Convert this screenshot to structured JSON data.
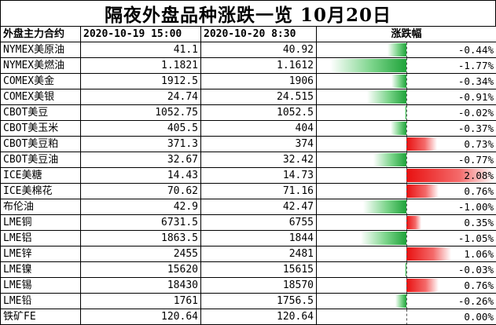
{
  "title": "隔夜外盘品种涨跌一览 10月20日",
  "headers": {
    "name": "外盘主力合约",
    "prev": "2020-10-19 15:00",
    "curr": "2020-10-20 8:30",
    "change": "涨跌幅"
  },
  "colors": {
    "positive": "#e81010",
    "negative": "#1fa33a"
  },
  "rows": [
    {
      "name": "NYMEX美原油",
      "prev": "41.1",
      "curr": "40.92",
      "change": "-0.44%",
      "pct": -0.44
    },
    {
      "name": "NYMEX美燃油",
      "prev": "1.1821",
      "curr": "1.1612",
      "change": "-1.77%",
      "pct": -1.77
    },
    {
      "name": "COMEX美金",
      "prev": "1912.5",
      "curr": "1906",
      "change": "-0.34%",
      "pct": -0.34
    },
    {
      "name": "COMEX美银",
      "prev": "24.74",
      "curr": "24.515",
      "change": "-0.91%",
      "pct": -0.91
    },
    {
      "name": "CBOT美豆",
      "prev": "1052.75",
      "curr": "1052.5",
      "change": "-0.02%",
      "pct": -0.02
    },
    {
      "name": "CBOT美玉米",
      "prev": "405.5",
      "curr": "404",
      "change": "-0.37%",
      "pct": -0.37
    },
    {
      "name": "CBOT美豆粕",
      "prev": "371.3",
      "curr": "374",
      "change": "0.73%",
      "pct": 0.73
    },
    {
      "name": "CBOT美豆油",
      "prev": "32.67",
      "curr": "32.42",
      "change": "-0.77%",
      "pct": -0.77
    },
    {
      "name": "ICE美糖",
      "prev": "14.43",
      "curr": "14.73",
      "change": "2.08%",
      "pct": 2.08
    },
    {
      "name": "ICE美棉花",
      "prev": "70.62",
      "curr": "71.16",
      "change": "0.76%",
      "pct": 0.76
    },
    {
      "name": "布伦油",
      "prev": "42.9",
      "curr": "42.47",
      "change": "-1.00%",
      "pct": -1.0
    },
    {
      "name": "LME铜",
      "prev": "6731.5",
      "curr": "6755",
      "change": "0.35%",
      "pct": 0.35
    },
    {
      "name": "LME铝",
      "prev": "1863.5",
      "curr": "1844",
      "change": "-1.05%",
      "pct": -1.05
    },
    {
      "name": "LME锌",
      "prev": "2455",
      "curr": "2481",
      "change": "1.06%",
      "pct": 1.06
    },
    {
      "name": "LME镍",
      "prev": "15620",
      "curr": "15615",
      "change": "-0.03%",
      "pct": -0.03
    },
    {
      "name": "LME锡",
      "prev": "18430",
      "curr": "18570",
      "change": "0.76%",
      "pct": 0.76
    },
    {
      "name": "LME铅",
      "prev": "1761",
      "curr": "1756.5",
      "change": "-0.26%",
      "pct": -0.26
    },
    {
      "name": "铁矿FE",
      "prev": "120.64",
      "curr": "120.64",
      "change": "0.00%",
      "pct": 0.0
    }
  ]
}
